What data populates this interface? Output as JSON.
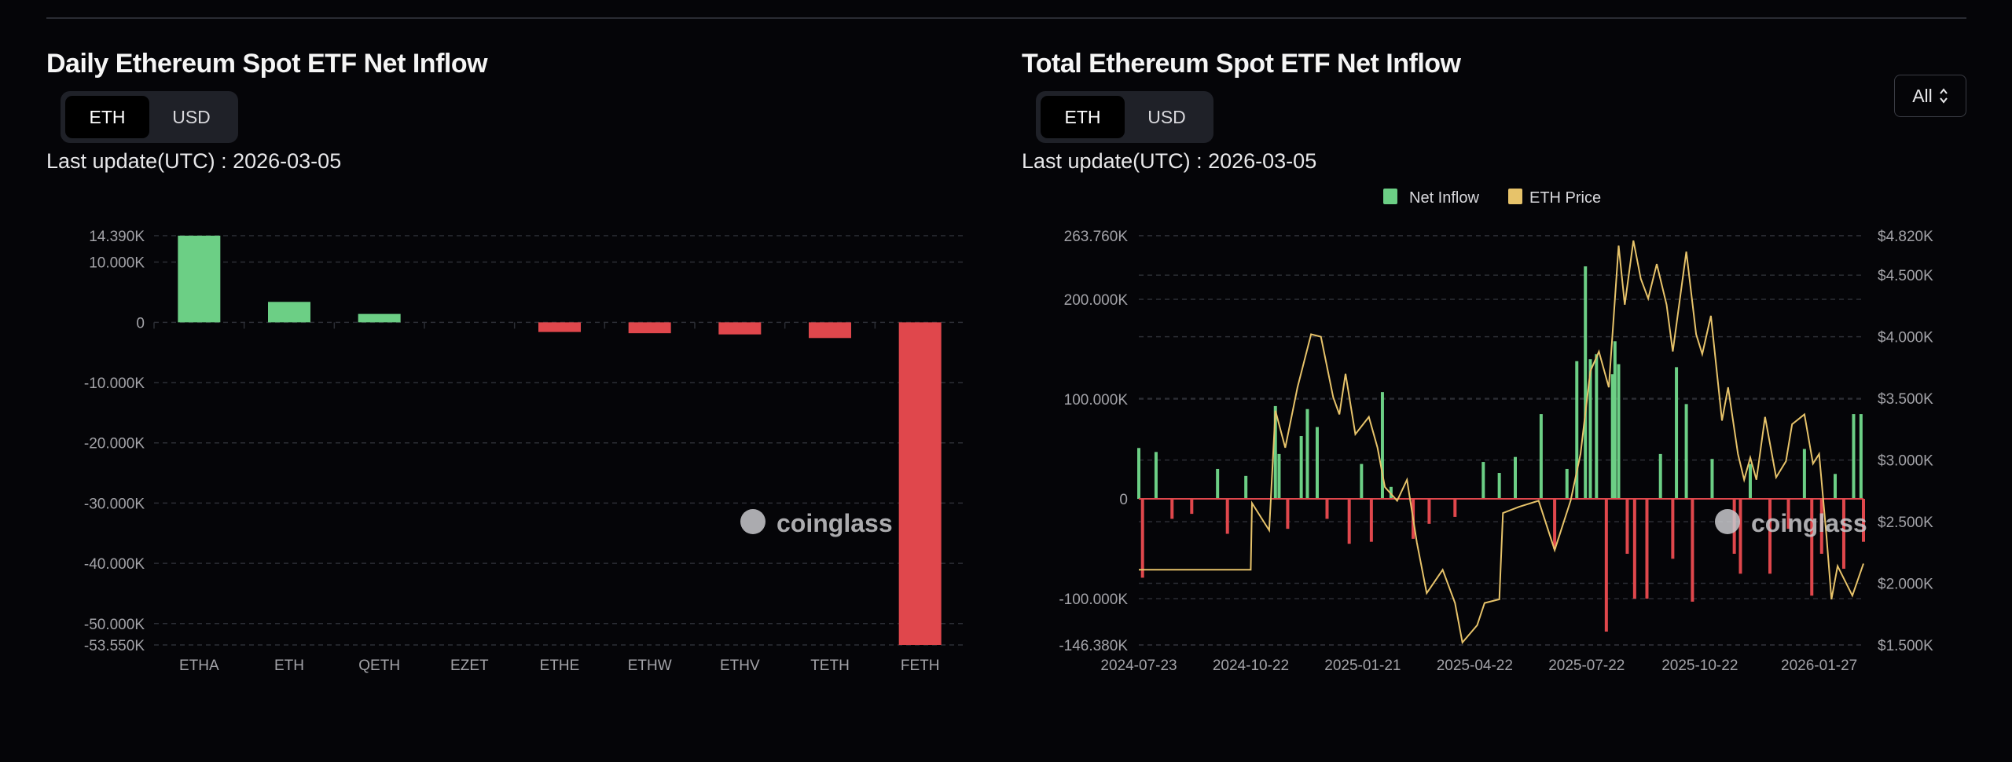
{
  "left": {
    "title": "Daily Ethereum Spot ETF Net Inflow",
    "toggle": [
      "ETH",
      "USD"
    ],
    "active": "ETH",
    "last_update": "Last update(UTC) : 2026-03-05"
  },
  "right": {
    "title": "Total Ethereum Spot ETF Net Inflow",
    "toggle": [
      "ETH",
      "USD"
    ],
    "active": "ETH",
    "last_update": "Last update(UTC) : 2026-03-05",
    "range_select": "All",
    "range_icon": "chevron-up-down-icon"
  },
  "watermark": "coinglass",
  "colors": {
    "positive": "#6ccf85",
    "negative": "#e0474c",
    "price": "#e7c36a",
    "background": "#050508"
  },
  "chart_data": [
    {
      "type": "bar",
      "categories": [
        "ETHA",
        "ETH",
        "QETH",
        "EZET",
        "ETHE",
        "ETHW",
        "ETHV",
        "TETH",
        "FETH"
      ],
      "values": [
        14.39,
        3.4,
        1.4,
        0,
        -1.6,
        -1.8,
        -2.0,
        -2.6,
        -53.55
      ],
      "unit": "K ETH",
      "ylim": [
        -53.55,
        14.39
      ],
      "yticks": [
        14.39,
        10,
        0,
        -10,
        -20,
        -30,
        -40,
        -50,
        -53.55
      ],
      "ytick_labels": [
        "14.390K",
        "10.000K",
        "0",
        "-10.000K",
        "-20.000K",
        "-30.000K",
        "-40.000K",
        "-50.000K",
        "-53.550K"
      ],
      "grid": true
    },
    {
      "type": "bar+line",
      "legend": [
        "Net Inflow",
        "ETH Price"
      ],
      "legend_position": "top-center",
      "ylim_left": [
        -146.38,
        263.76
      ],
      "yticks_left": [
        263.76,
        200,
        100,
        0,
        -100,
        -146.38
      ],
      "ytick_labels_left": [
        "263.760K",
        "200.000K",
        "100.000K",
        "0",
        "-100.000K",
        "-146.380K"
      ],
      "ylim_right": [
        1.5,
        4.82
      ],
      "yticks_right": [
        4.82,
        4.5,
        4.0,
        3.5,
        3.0,
        2.5,
        2.0,
        1.5
      ],
      "ytick_labels_right": [
        "$4.820K",
        "$4.500K",
        "$4.000K",
        "$3.500K",
        "$3.000K",
        "$2.500K",
        "$2.000K",
        "$1.500K"
      ],
      "xlim": [
        "2024-07-23",
        "2026-03-04"
      ],
      "xticks": [
        "2024-07-23",
        "2024-10-22",
        "2025-01-21",
        "2025-04-22",
        "2025-07-22",
        "2025-10-22",
        "2026-01-27"
      ],
      "grid": true,
      "net_inflow": [
        [
          "2024-07-23",
          51
        ],
        [
          "2024-07-26",
          -79
        ],
        [
          "2024-08-06",
          47
        ],
        [
          "2024-08-19",
          -20
        ],
        [
          "2024-09-04",
          -15
        ],
        [
          "2024-09-25",
          30
        ],
        [
          "2024-10-03",
          -35
        ],
        [
          "2024-10-18",
          23
        ],
        [
          "2024-11-11",
          93
        ],
        [
          "2024-11-14",
          45
        ],
        [
          "2024-11-21",
          -30
        ],
        [
          "2024-12-02",
          63
        ],
        [
          "2024-12-07",
          90
        ],
        [
          "2024-12-15",
          72
        ],
        [
          "2024-12-23",
          -20
        ],
        [
          "2025-01-10",
          -45
        ],
        [
          "2025-01-20",
          35
        ],
        [
          "2025-01-28",
          -43
        ],
        [
          "2025-02-06",
          107
        ],
        [
          "2025-02-13",
          12
        ],
        [
          "2025-03-03",
          -40
        ],
        [
          "2025-03-16",
          -25
        ],
        [
          "2025-04-06",
          -18
        ],
        [
          "2025-04-29",
          37
        ],
        [
          "2025-05-12",
          26
        ],
        [
          "2025-05-25",
          42
        ],
        [
          "2025-06-15",
          85
        ],
        [
          "2025-06-26",
          -50
        ],
        [
          "2025-07-06",
          30
        ],
        [
          "2025-07-14",
          138
        ],
        [
          "2025-07-21",
          233
        ],
        [
          "2025-07-25",
          140
        ],
        [
          "2025-07-30",
          145
        ],
        [
          "2025-08-07",
          -133
        ],
        [
          "2025-08-12",
          125
        ],
        [
          "2025-08-14",
          158
        ],
        [
          "2025-08-17",
          135
        ],
        [
          "2025-08-24",
          -55
        ],
        [
          "2025-08-30",
          -100
        ],
        [
          "2025-09-09",
          -100
        ],
        [
          "2025-09-20",
          45
        ],
        [
          "2025-09-30",
          -60
        ],
        [
          "2025-10-03",
          132
        ],
        [
          "2025-10-11",
          95
        ],
        [
          "2025-10-16",
          -103
        ],
        [
          "2025-11-01",
          40
        ],
        [
          "2025-11-19",
          -55
        ],
        [
          "2025-11-24",
          -75
        ],
        [
          "2025-12-02",
          35
        ],
        [
          "2025-12-18",
          -75
        ],
        [
          "2026-01-02",
          -30
        ],
        [
          "2026-01-15",
          50
        ],
        [
          "2026-01-21",
          -97
        ],
        [
          "2026-01-29",
          -55
        ],
        [
          "2026-02-09",
          25
        ],
        [
          "2026-02-16",
          -70
        ],
        [
          "2026-02-24",
          85
        ],
        [
          "2026-03-02",
          85
        ],
        [
          "2026-03-04",
          -43
        ]
      ],
      "eth_price": [
        [
          "2024-07-23",
          2.11
        ],
        [
          "2024-10-22",
          2.11
        ],
        [
          "2024-10-23",
          2.65
        ],
        [
          "2024-11-06",
          2.43
        ],
        [
          "2024-11-11",
          3.4
        ],
        [
          "2024-11-19",
          3.1
        ],
        [
          "2024-11-29",
          3.59
        ],
        [
          "2024-12-10",
          4.02
        ],
        [
          "2024-12-18",
          4.0
        ],
        [
          "2024-12-28",
          3.51
        ],
        [
          "2025-01-02",
          3.37
        ],
        [
          "2025-01-07",
          3.7
        ],
        [
          "2025-01-15",
          3.21
        ],
        [
          "2025-01-26",
          3.35
        ],
        [
          "2025-02-02",
          3.1
        ],
        [
          "2025-02-08",
          2.78
        ],
        [
          "2025-02-18",
          2.67
        ],
        [
          "2025-02-26",
          2.84
        ],
        [
          "2025-03-06",
          2.33
        ],
        [
          "2025-03-14",
          1.92
        ],
        [
          "2025-03-27",
          2.11
        ],
        [
          "2025-04-06",
          1.84
        ],
        [
          "2025-04-12",
          1.52
        ],
        [
          "2025-04-24",
          1.66
        ],
        [
          "2025-04-30",
          1.84
        ],
        [
          "2025-05-12",
          1.87
        ],
        [
          "2025-05-15",
          2.57
        ],
        [
          "2025-05-28",
          2.62
        ],
        [
          "2025-06-13",
          2.67
        ],
        [
          "2025-06-26",
          2.27
        ],
        [
          "2025-07-09",
          2.67
        ],
        [
          "2025-07-17",
          3.05
        ],
        [
          "2025-07-25",
          3.72
        ],
        [
          "2025-08-01",
          3.88
        ],
        [
          "2025-08-09",
          3.59
        ],
        [
          "2025-08-17",
          4.74
        ],
        [
          "2025-08-22",
          4.26
        ],
        [
          "2025-08-29",
          4.78
        ],
        [
          "2025-09-04",
          4.47
        ],
        [
          "2025-09-10",
          4.31
        ],
        [
          "2025-09-17",
          4.59
        ],
        [
          "2025-09-25",
          4.26
        ],
        [
          "2025-09-30",
          3.88
        ],
        [
          "2025-10-11",
          4.69
        ],
        [
          "2025-10-19",
          4.02
        ],
        [
          "2025-10-24",
          3.86
        ],
        [
          "2025-10-31",
          4.17
        ],
        [
          "2025-11-09",
          3.32
        ],
        [
          "2025-11-14",
          3.59
        ],
        [
          "2025-11-22",
          3.05
        ],
        [
          "2025-11-27",
          2.84
        ],
        [
          "2025-12-02",
          3.02
        ],
        [
          "2025-12-07",
          2.84
        ],
        [
          "2025-12-14",
          3.35
        ],
        [
          "2025-12-23",
          2.86
        ],
        [
          "2025-12-31",
          2.99
        ],
        [
          "2026-01-05",
          3.29
        ],
        [
          "2026-01-15",
          3.37
        ],
        [
          "2026-01-22",
          2.97
        ],
        [
          "2026-01-27",
          3.05
        ],
        [
          "2026-02-02",
          2.38
        ],
        [
          "2026-02-06",
          1.87
        ],
        [
          "2026-02-11",
          2.14
        ],
        [
          "2026-02-23",
          1.9
        ],
        [
          "2026-03-04",
          2.16
        ]
      ]
    }
  ]
}
